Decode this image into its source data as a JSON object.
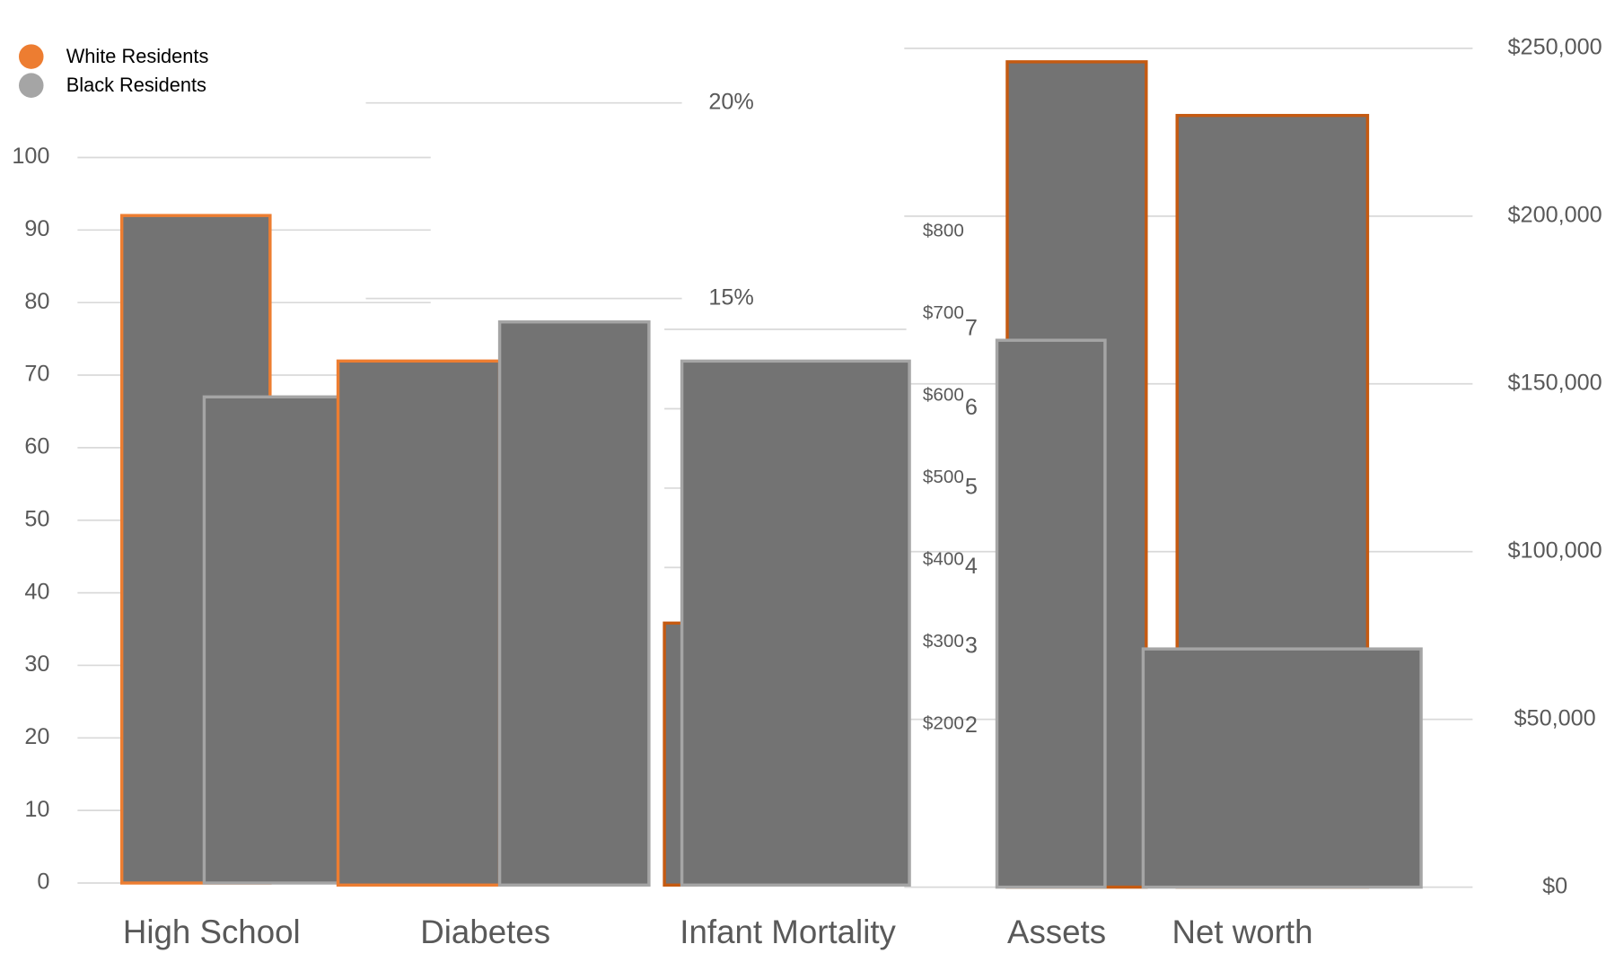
{
  "chart_data": [
    {
      "type": "bar",
      "categories": [
        "High School"
      ],
      "series": [
        {
          "name": "White Residents",
          "color": "#ed7d31",
          "values": [
            92
          ]
        },
        {
          "name": "Black Residents",
          "color": "#a5a5a5",
          "values": [
            67
          ]
        }
      ],
      "building_color": "#737373",
      "ylim": [
        0,
        100
      ],
      "yticks": [
        0,
        10,
        20,
        30,
        40,
        50,
        60,
        70,
        80,
        90,
        100
      ],
      "grid": true
    },
    {
      "type": "bar",
      "categories": [
        "Diabetes"
      ],
      "series": [
        {
          "color": "#ed7d31",
          "values": [
            13.4
          ]
        },
        {
          "color": "#a5a5a5",
          "values": [
            14.4
          ]
        }
      ],
      "building_color": "#737373",
      "ylim": [
        0,
        20
      ],
      "yticks": [
        {
          "value": 15,
          "label": "15%"
        },
        {
          "value": 20,
          "label": "20%"
        }
      ],
      "grid": true
    },
    {
      "type": "bar",
      "categories": [
        "Infant Mortality"
      ],
      "series": [
        {
          "color": "#c55a11",
          "values": [
            3.3
          ]
        },
        {
          "color": "#a5a5a5",
          "values": [
            6.6
          ]
        }
      ],
      "building_color": "#737373",
      "ylim": [
        0,
        7
      ],
      "yticks": [
        2,
        3,
        4,
        5,
        6,
        7
      ],
      "grid": true
    },
    {
      "type": "bar",
      "ylim": [
        0,
        800
      ],
      "yticks": [
        {
          "value": 200,
          "label": "$200"
        },
        {
          "value": 300,
          "label": "$300"
        },
        {
          "value": 400,
          "label": "$400"
        },
        {
          "value": 500,
          "label": "$500"
        },
        {
          "value": 600,
          "label": "$600"
        },
        {
          "value": 700,
          "label": "$700"
        },
        {
          "value": 800,
          "label": "$800"
        }
      ],
      "grid": false
    },
    {
      "type": "bar",
      "categories": [
        "Assets",
        "Net worth"
      ],
      "series": [
        {
          "color": "#c55a11",
          "values": [
            246000,
            230000
          ]
        },
        {
          "color": "#a5a5a5",
          "values": [
            163000,
            71000
          ]
        }
      ],
      "building_color": "#737373",
      "ylim": [
        0,
        250000
      ],
      "yticks": [
        {
          "value": 0,
          "label": "$0"
        },
        {
          "value": 50000,
          "label": "$50,000"
        },
        {
          "value": 100000,
          "label": "$100,000"
        },
        {
          "value": 150000,
          "label": "$150,000"
        },
        {
          "value": 200000,
          "label": "$200,000"
        },
        {
          "value": 250000,
          "label": "$250,000"
        }
      ],
      "grid": true
    }
  ]
}
